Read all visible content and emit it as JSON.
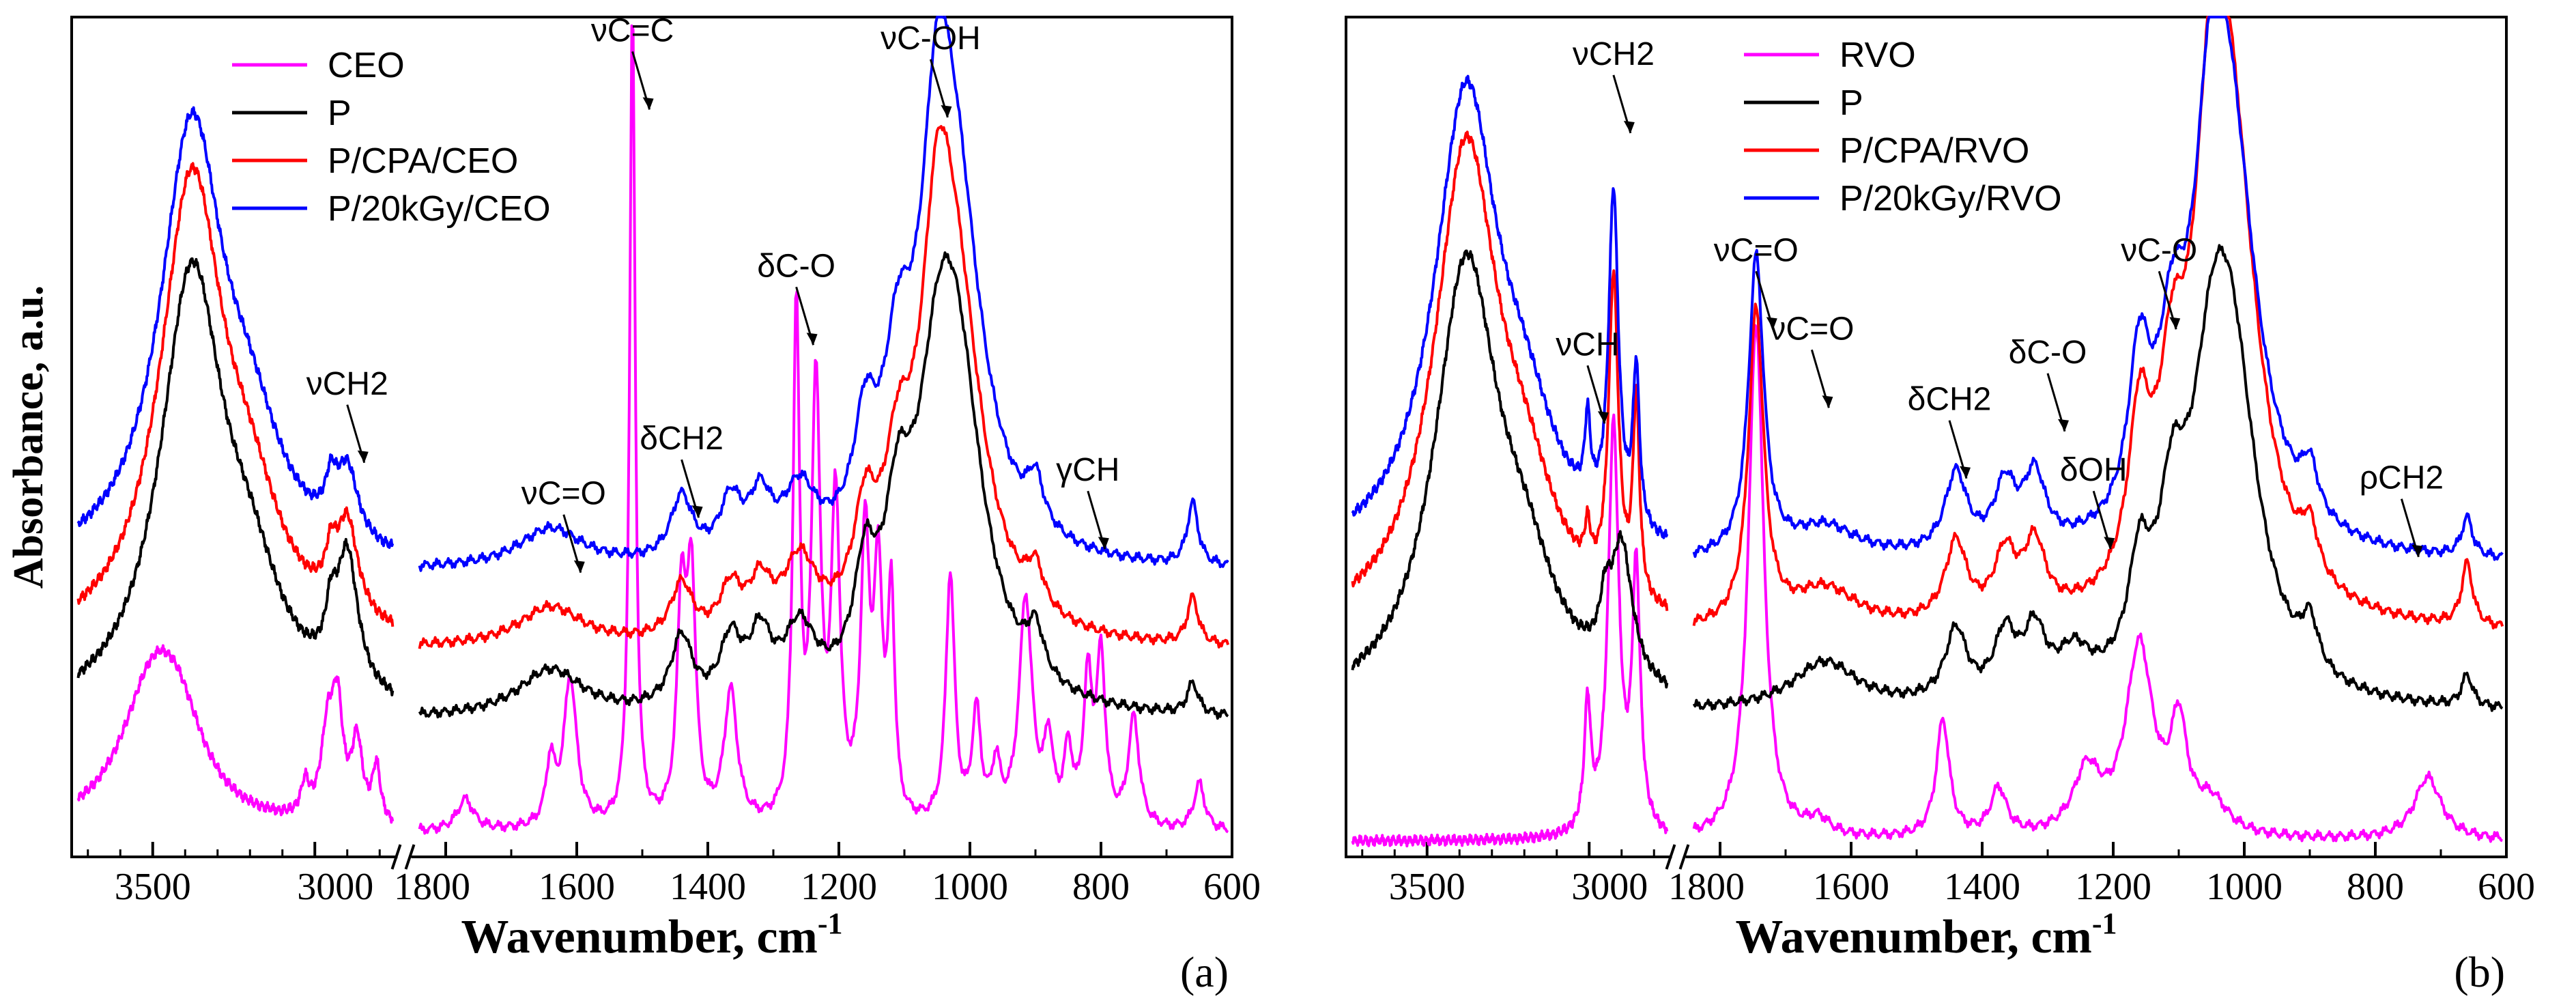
{
  "chart_data": [
    {
      "id": "a",
      "type": "line",
      "panel_label": "(a)",
      "ylabel": "Absorbance, a.u.",
      "xlabel": "Wavenumber, cm",
      "xlabel_sup": "-1",
      "x_segments": [
        [
          3750,
          2750
        ],
        [
          1850,
          600
        ]
      ],
      "x_ticks_left": [
        3500,
        3000
      ],
      "x_ticks_right": [
        1800,
        1600,
        1400,
        1200,
        1000,
        800,
        600
      ],
      "break_label_left": "3000",
      "break_label_right": "1800",
      "legend": [
        {
          "name": "CEO",
          "color": "#ff00ff"
        },
        {
          "name": "P",
          "color": "#000000"
        },
        {
          "name": "P/CPA/CEO",
          "color": "#ff0000"
        },
        {
          "name": "P/20kGy/CEO",
          "color": "#0000ff"
        }
      ],
      "series": [
        {
          "name": "CEO",
          "color": "#ff00ff",
          "baseline": 0.03,
          "peaks": [
            [
              3500,
              0.17,
              120
            ],
            [
              3420,
              0.09,
              100
            ],
            [
              2960,
              0.11,
              25
            ],
            [
              2930,
              0.13,
              20
            ],
            [
              2870,
              0.1,
              20
            ],
            [
              2810,
              0.07,
              15
            ],
            [
              3030,
              0.04,
              15
            ],
            [
              1770,
              0.04,
              15
            ],
            [
              1640,
              0.08,
              8
            ],
            [
              1610,
              0.19,
              12
            ],
            [
              1515,
              1.05,
              5
            ],
            [
              1440,
              0.28,
              8
            ],
            [
              1425,
              0.3,
              8
            ],
            [
              1365,
              0.17,
              12
            ],
            [
              1265,
              0.65,
              6
            ],
            [
              1235,
              0.55,
              8
            ],
            [
              1205,
              0.4,
              8
            ],
            [
              1160,
              0.35,
              8
            ],
            [
              1140,
              0.3,
              8
            ],
            [
              1120,
              0.28,
              6
            ],
            [
              1030,
              0.32,
              8
            ],
            [
              990,
              0.14,
              8
            ],
            [
              960,
              0.07,
              8
            ],
            [
              915,
              0.29,
              12
            ],
            [
              880,
              0.1,
              8
            ],
            [
              850,
              0.09,
              8
            ],
            [
              820,
              0.18,
              8
            ],
            [
              800,
              0.21,
              8
            ],
            [
              750,
              0.14,
              10
            ],
            [
              650,
              0.06,
              10
            ]
          ]
        },
        {
          "name": "P",
          "color": "#000000",
          "baseline": 0.17,
          "peaks": [
            [
              3380,
              0.55,
              120
            ],
            [
              3200,
              0.12,
              120
            ],
            [
              2900,
              0.17,
              40
            ],
            [
              2950,
              0.06,
              20
            ],
            [
              1640,
              0.06,
              60
            ],
            [
              1440,
              0.09,
              20
            ],
            [
              1365,
              0.08,
              20
            ],
            [
              1320,
              0.08,
              20
            ],
            [
              1260,
              0.09,
              30
            ],
            [
              1160,
              0.13,
              20
            ],
            [
              1110,
              0.17,
              25
            ],
            [
              1050,
              0.25,
              40
            ],
            [
              1020,
              0.38,
              50
            ],
            [
              900,
              0.06,
              15
            ],
            [
              660,
              0.04,
              10
            ]
          ]
        },
        {
          "name": "P/CPA/CEO",
          "color": "#ff0000",
          "baseline": 0.26,
          "peaks": [
            [
              3380,
              0.58,
              120
            ],
            [
              3200,
              0.12,
              120
            ],
            [
              2900,
              0.12,
              40
            ],
            [
              2950,
              0.05,
              20
            ],
            [
              1640,
              0.05,
              60
            ],
            [
              1440,
              0.07,
              20
            ],
            [
              1365,
              0.06,
              20
            ],
            [
              1320,
              0.06,
              20
            ],
            [
              1260,
              0.09,
              30
            ],
            [
              1160,
              0.12,
              20
            ],
            [
              1110,
              0.15,
              25
            ],
            [
              1050,
              0.35,
              30
            ],
            [
              1020,
              0.38,
              50
            ],
            [
              900,
              0.05,
              15
            ],
            [
              660,
              0.06,
              10
            ]
          ]
        },
        {
          "name": "P/20kGy/CEO",
          "color": "#0000ff",
          "baseline": 0.36,
          "peaks": [
            [
              3380,
              0.55,
              120
            ],
            [
              3200,
              0.12,
              120
            ],
            [
              2900,
              0.09,
              40
            ],
            [
              2950,
              0.05,
              20
            ],
            [
              1640,
              0.05,
              60
            ],
            [
              1440,
              0.08,
              20
            ],
            [
              1365,
              0.07,
              20
            ],
            [
              1320,
              0.07,
              20
            ],
            [
              1260,
              0.08,
              30
            ],
            [
              1160,
              0.13,
              20
            ],
            [
              1110,
              0.18,
              25
            ],
            [
              1050,
              0.38,
              30
            ],
            [
              1020,
              0.4,
              50
            ],
            [
              900,
              0.06,
              15
            ],
            [
              660,
              0.08,
              10
            ]
          ]
        }
      ],
      "annotations": [
        {
          "text": "νC=C",
          "x": 1515,
          "y": 1.0
        },
        {
          "text": "νC-OH",
          "x": 1060,
          "y": 0.99
        },
        {
          "text": "δC-O",
          "x": 1265,
          "y": 0.7
        },
        {
          "text": "νCH2",
          "x": 2900,
          "y": 0.55
        },
        {
          "text": "νC=O",
          "x": 1620,
          "y": 0.41
        },
        {
          "text": "δCH2",
          "x": 1440,
          "y": 0.48
        },
        {
          "text": "γCH",
          "x": 820,
          "y": 0.44
        }
      ],
      "ylim": [
        0,
        1.07
      ]
    },
    {
      "id": "b",
      "type": "line",
      "panel_label": "(b)",
      "xlabel": "Wavenumber, cm",
      "xlabel_sup": "-1",
      "x_segments": [
        [
          3750,
          2750
        ],
        [
          1850,
          600
        ]
      ],
      "x_ticks_left": [
        3500,
        3000
      ],
      "x_ticks_right": [
        1800,
        1600,
        1400,
        1200,
        1000,
        800,
        600
      ],
      "break_label_left": "3000",
      "break_label_right": "1800",
      "legend": [
        {
          "name": "RVO",
          "color": "#ff00ff"
        },
        {
          "name": "P",
          "color": "#000000"
        },
        {
          "name": "P/CPA/RVO",
          "color": "#ff0000"
        },
        {
          "name": "P/20kGy/RVO",
          "color": "#0000ff"
        }
      ],
      "series": [
        {
          "name": "RVO",
          "color": "#ff00ff",
          "baseline": 0.02,
          "peaks": [
            [
              3005,
              0.16,
              12
            ],
            [
              2925,
              0.52,
              20
            ],
            [
              2855,
              0.33,
              15
            ],
            [
              1745,
              0.66,
              14
            ],
            [
              1650,
              0.02,
              20
            ],
            [
              1460,
              0.15,
              12
            ],
            [
              1375,
              0.06,
              15
            ],
            [
              1240,
              0.08,
              25
            ],
            [
              1160,
              0.24,
              25
            ],
            [
              1100,
              0.13,
              15
            ],
            [
              1050,
              0.04,
              30
            ],
            [
              720,
              0.08,
              25
            ]
          ]
        },
        {
          "name": "P",
          "color": "#000000",
          "baseline": 0.18,
          "peaks": [
            [
              3380,
              0.55,
              120
            ],
            [
              3200,
              0.12,
              120
            ],
            [
              2900,
              0.17,
              40
            ],
            [
              2950,
              0.06,
              20
            ],
            [
              1640,
              0.06,
              60
            ],
            [
              1440,
              0.09,
              20
            ],
            [
              1365,
              0.08,
              20
            ],
            [
              1320,
              0.08,
              20
            ],
            [
              1260,
              0.05,
              30
            ],
            [
              1160,
              0.13,
              20
            ],
            [
              1110,
              0.17,
              25
            ],
            [
              1050,
              0.25,
              40
            ],
            [
              1020,
              0.38,
              50
            ],
            [
              900,
              0.06,
              15
            ],
            [
              660,
              0.04,
              10
            ]
          ]
        },
        {
          "name": "P/CPA/RVO",
          "color": "#ff0000",
          "baseline": 0.28,
          "peaks": [
            [
              3380,
              0.6,
              120
            ],
            [
              3200,
              0.12,
              120
            ],
            [
              2925,
              0.4,
              18
            ],
            [
              2855,
              0.25,
              12
            ],
            [
              3005,
              0.05,
              10
            ],
            [
              1745,
              0.4,
              14
            ],
            [
              1640,
              0.05,
              60
            ],
            [
              1440,
              0.1,
              20
            ],
            [
              1365,
              0.08,
              20
            ],
            [
              1320,
              0.09,
              20
            ],
            [
              1160,
              0.2,
              20
            ],
            [
              1110,
              0.2,
              25
            ],
            [
              1050,
              0.4,
              30
            ],
            [
              1020,
              0.55,
              50
            ],
            [
              900,
              0.06,
              15
            ],
            [
              660,
              0.08,
              10
            ]
          ]
        },
        {
          "name": "P/20kGy/RVO",
          "color": "#0000ff",
          "baseline": 0.37,
          "peaks": [
            [
              3380,
              0.58,
              120
            ],
            [
              3200,
              0.12,
              120
            ],
            [
              2925,
              0.42,
              18
            ],
            [
              2855,
              0.2,
              12
            ],
            [
              3005,
              0.1,
              10
            ],
            [
              1745,
              0.38,
              14
            ],
            [
              1640,
              0.04,
              60
            ],
            [
              1440,
              0.1,
              20
            ],
            [
              1365,
              0.08,
              20
            ],
            [
              1320,
              0.09,
              20
            ],
            [
              1160,
              0.2,
              20
            ],
            [
              1110,
              0.18,
              25
            ],
            [
              1050,
              0.36,
              30
            ],
            [
              1020,
              0.46,
              50
            ],
            [
              900,
              0.06,
              15
            ],
            [
              660,
              0.05,
              10
            ]
          ]
        }
      ],
      "annotations": [
        {
          "text": "νCH2",
          "x": 2925,
          "y": 0.97
        },
        {
          "text": "νC=O",
          "x": 1745,
          "y": 0.72
        },
        {
          "text": "νC=O",
          "x": 1660,
          "y": 0.62
        },
        {
          "text": "νCH",
          "x": 3005,
          "y": 0.6
        },
        {
          "text": "δCH2",
          "x": 1450,
          "y": 0.53
        },
        {
          "text": "δC-O",
          "x": 1300,
          "y": 0.59
        },
        {
          "text": "δOH",
          "x": 1230,
          "y": 0.44
        },
        {
          "text": "νC-O",
          "x": 1130,
          "y": 0.72
        },
        {
          "text": "ρCH2",
          "x": 760,
          "y": 0.43
        }
      ],
      "ylim": [
        0,
        1.07
      ]
    }
  ]
}
